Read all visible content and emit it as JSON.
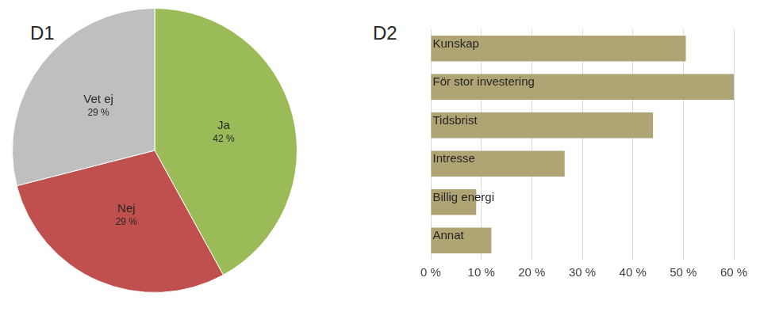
{
  "chart_data": [
    {
      "type": "pie",
      "title": "D1",
      "categories": [
        "Ja",
        "Nej",
        "Vet ej"
      ],
      "values": [
        42,
        29,
        29
      ],
      "value_labels": [
        "42 %",
        "29 %",
        "29 %"
      ],
      "colors": [
        "#9bbb59",
        "#c0504d",
        "#bfbfbf"
      ],
      "data_labels": true
    },
    {
      "type": "bar",
      "title": "D2",
      "orientation": "horizontal",
      "categories": [
        "Kunskap",
        "För stor investering",
        "Tidsbrist",
        "Intresse",
        "Billig energi",
        "Annat"
      ],
      "values": [
        50.5,
        60,
        44,
        26.5,
        9,
        12
      ],
      "color": "#aea474",
      "xlim": [
        0,
        60
      ],
      "xticks": [
        {
          "value": 0,
          "label": "0 %"
        },
        {
          "value": 10,
          "label": "10 %"
        },
        {
          "value": 20,
          "label": "20 %"
        },
        {
          "value": 30,
          "label": "30 %"
        },
        {
          "value": 40,
          "label": "40 %"
        },
        {
          "value": 50,
          "label": "50 %"
        },
        {
          "value": 60,
          "label": "60 %"
        }
      ],
      "grid": true,
      "tick_labels": "x"
    }
  ]
}
